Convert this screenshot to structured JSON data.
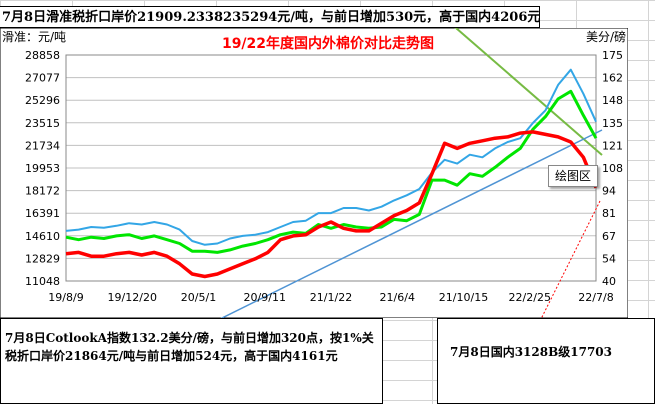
{
  "top_note": "7月8日滑准税折口岸价21909.2338235294元/吨，与前日增加530元，高于国内4206元",
  "left_note": "7月8日CotlookA指数132.2美分/磅，与前日增加320点，按1%关税折口岸价21864元/吨与前日增加524元，高于国内4161元",
  "right_note": "7月8日国内3128B级17703",
  "tooltip": "绘图区",
  "colors": {
    "title": "#ff0000",
    "blue": "#33a6e6",
    "green": "#00e600",
    "red": "#ff0000",
    "trend_green": "#77bb44",
    "trend_blue": "#4f94d4"
  },
  "chart_data": {
    "type": "line",
    "title": "19/22年度国内外棉价对比走势图",
    "left_axis_label": "滑准：元/吨",
    "right_axis_label": "美分/磅",
    "y_left_ticks": [
      "28858",
      "27077",
      "25296",
      "23515",
      "21734",
      "19953",
      "18172",
      "16391",
      "14610",
      "12829",
      "11048"
    ],
    "y_right_ticks": [
      "175",
      "162",
      "148",
      "135",
      "121",
      "108",
      "94",
      "81",
      "67",
      "54",
      "40"
    ],
    "ylim_left": [
      11048,
      28858
    ],
    "ylim_right": [
      40,
      175
    ],
    "x_ticks": [
      "19/8/9",
      "19/12/20",
      "20/5/1",
      "20/9/11",
      "21/1/22",
      "21/6/4",
      "21/10/15",
      "22/2/25",
      "22/7/8"
    ],
    "series": [
      {
        "key": "blue",
        "values": [
          15000,
          15100,
          15300,
          15250,
          15400,
          15600,
          15500,
          15700,
          15500,
          15100,
          14200,
          13900,
          14000,
          14400,
          14600,
          14700,
          14900,
          15300,
          15700,
          15800,
          16400,
          16400,
          16800,
          16800,
          16600,
          16900,
          17400,
          17800,
          18300,
          19600,
          20600,
          20300,
          21000,
          20800,
          21500,
          22000,
          22300,
          23500,
          24500,
          26500,
          27700,
          25800,
          23600
        ]
      },
      {
        "key": "green",
        "values": [
          14500,
          14300,
          14500,
          14400,
          14600,
          14700,
          14400,
          14600,
          14300,
          14000,
          13400,
          13400,
          13300,
          13500,
          13800,
          14000,
          14300,
          14700,
          14900,
          14800,
          15500,
          15200,
          15500,
          15300,
          15200,
          15300,
          15900,
          15800,
          16300,
          19000,
          19000,
          18600,
          19500,
          19300,
          20000,
          20800,
          21500,
          23000,
          24000,
          25400,
          26000,
          24100,
          22300
        ]
      },
      {
        "key": "red",
        "values": [
          13200,
          13300,
          13000,
          13000,
          13200,
          13300,
          13100,
          13300,
          13000,
          12400,
          11600,
          11400,
          11600,
          12000,
          12400,
          12800,
          13300,
          14300,
          14600,
          14700,
          15300,
          15700,
          15200,
          15000,
          15000,
          15600,
          16200,
          16600,
          17200,
          19500,
          21900,
          21500,
          21900,
          22100,
          22300,
          22400,
          22700,
          22800,
          22600,
          22400,
          22000,
          20800,
          18400
        ]
      }
    ]
  }
}
